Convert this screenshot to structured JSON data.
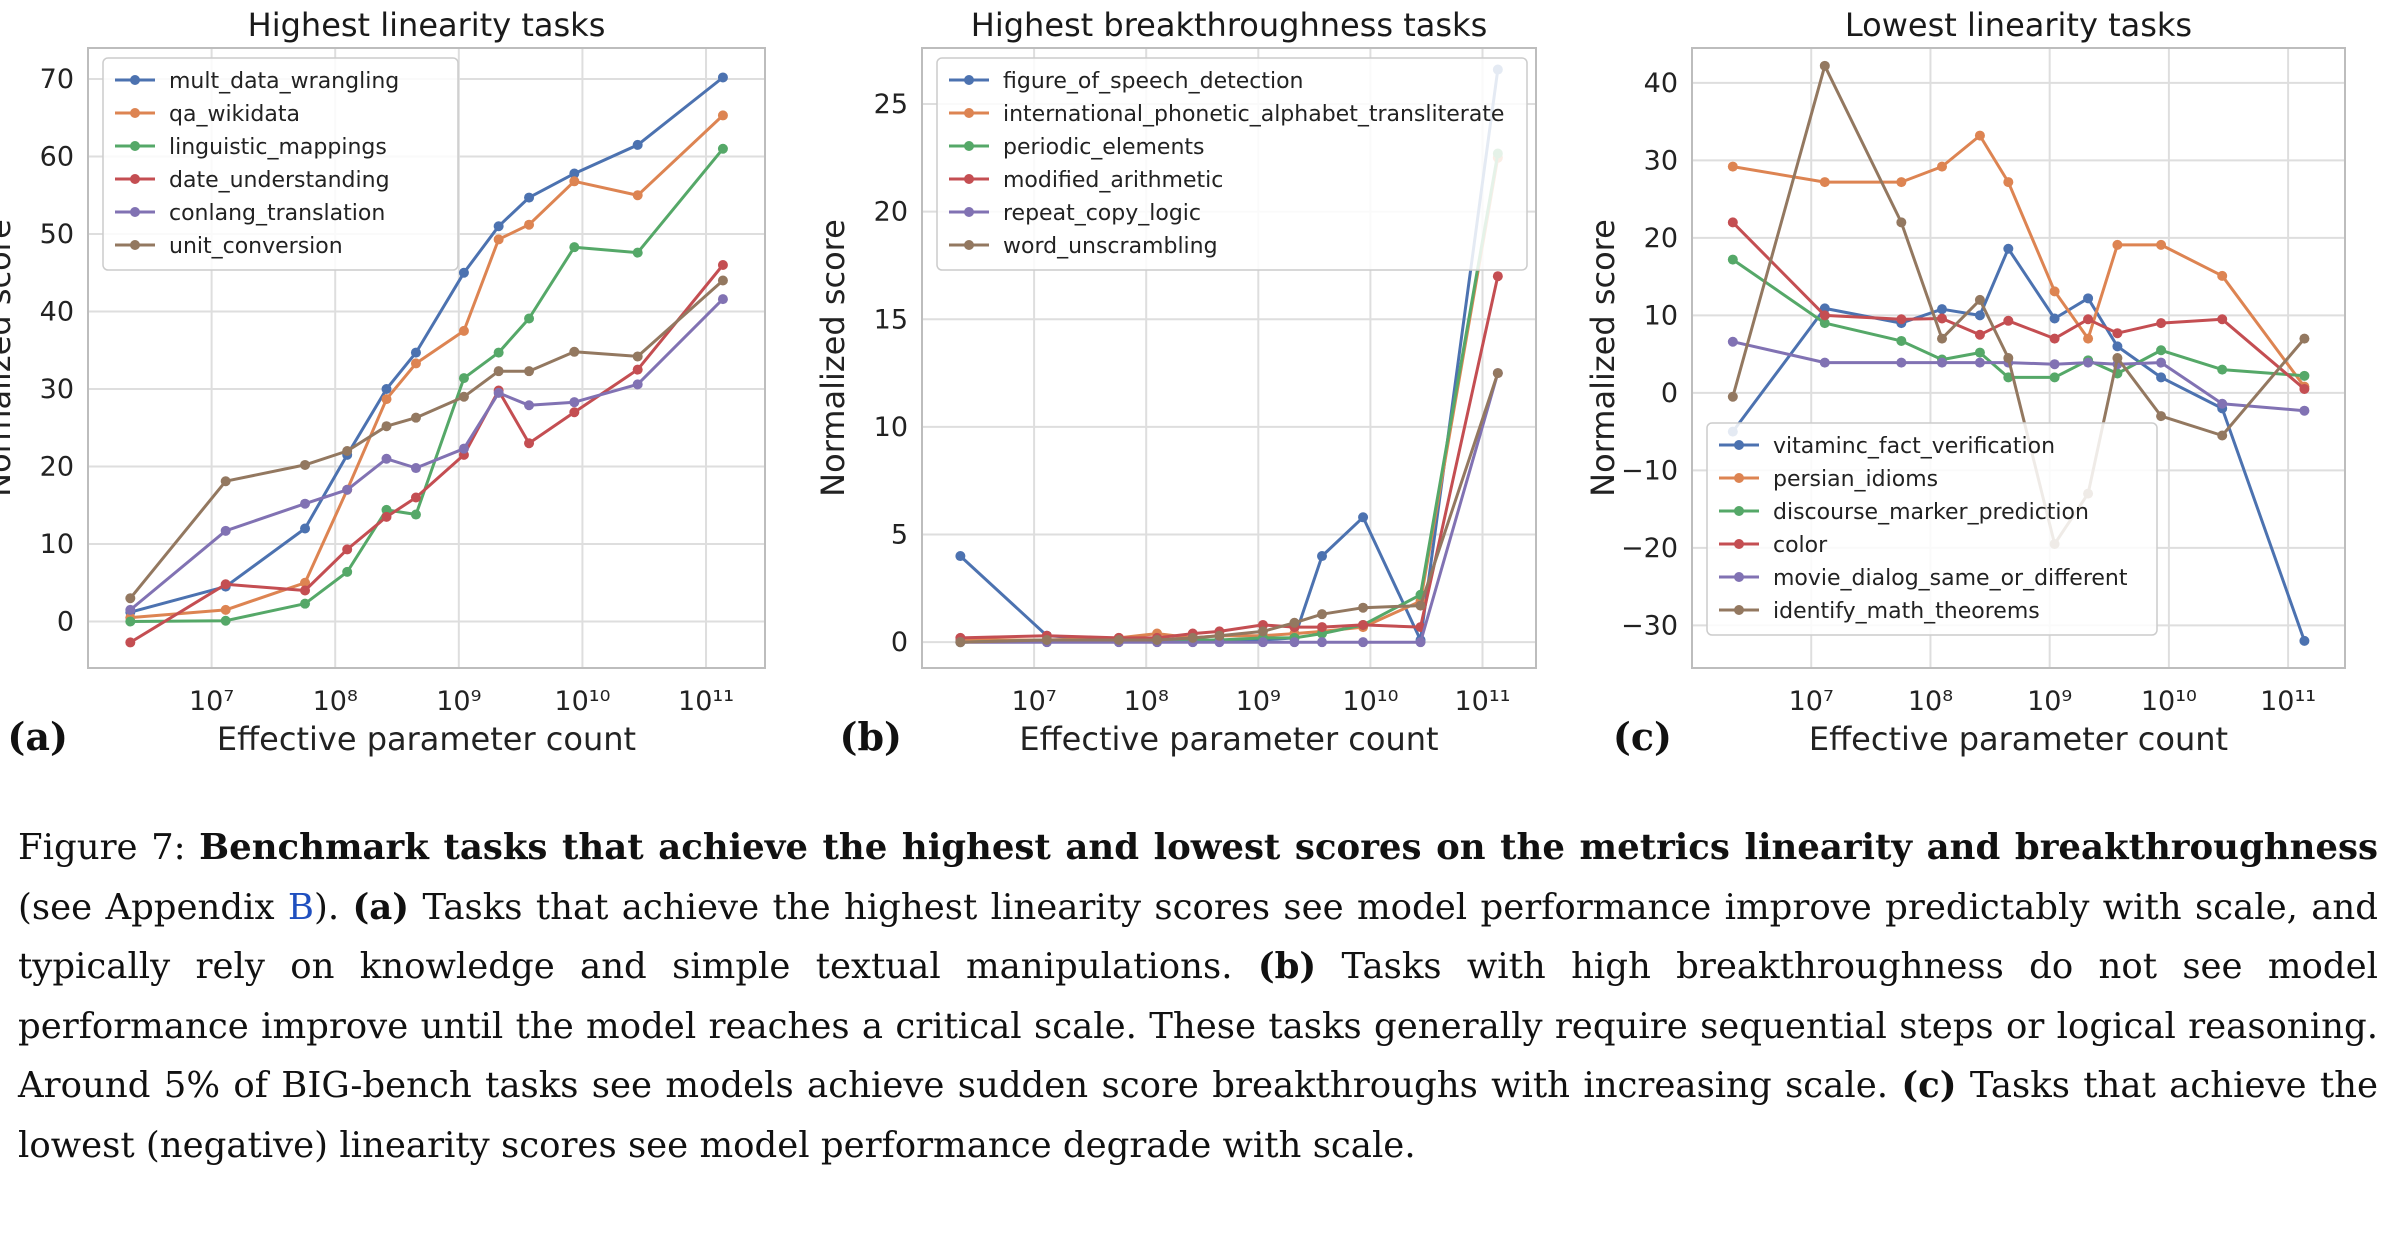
{
  "colors": {
    "blue": "#4c72b0",
    "orange": "#dd8452",
    "green": "#55a868",
    "red": "#c44e52",
    "purple": "#8172b3",
    "brown": "#937860",
    "grid": "#dedede",
    "frame": "#bdbdbd"
  },
  "x_common": [
    2200000.0,
    13000000.0,
    57000000.0,
    125000000.0,
    260000000.0,
    450000000.0,
    1100000000.0,
    2100000000.0,
    3700000000.0,
    8600000000.0,
    28000000000.0,
    137000000000.0
  ],
  "x_tick_labels": [
    "10⁷",
    "10⁸",
    "10⁹",
    "10¹⁰",
    "10¹¹"
  ],
  "chart_data": [
    {
      "type": "line",
      "title": "Highest linearity tasks",
      "tag": "(a)",
      "xlabel": "Effective parameter count",
      "ylabel": "Normalized score",
      "x_scale": "log",
      "xlim": [
        1000000.0,
        300000000000.0
      ],
      "ylim": [
        -6,
        74
      ],
      "yticks": [
        0,
        10,
        20,
        30,
        40,
        50,
        60,
        70
      ],
      "grid": true,
      "legend_position": "top-left",
      "series": [
        {
          "name": "mult_data_wrangling",
          "color": "blue",
          "x": [
            2200000.0,
            13000000.0,
            57000000.0,
            125000000.0,
            260000000.0,
            450000000.0,
            1100000000.0,
            2100000000.0,
            3700000000.0,
            8600000000.0,
            28000000000.0,
            137000000000.0
          ],
          "y": [
            1.2,
            4.5,
            12.0,
            21.5,
            30.0,
            34.7,
            45.0,
            51.0,
            54.7,
            57.8,
            61.5,
            70.2
          ]
        },
        {
          "name": "qa_wikidata",
          "color": "orange",
          "x": [
            2200000.0,
            13000000.0,
            57000000.0,
            125000000.0,
            260000000.0,
            450000000.0,
            1100000000.0,
            2100000000.0,
            3700000000.0,
            8600000000.0,
            28000000000.0,
            137000000000.0
          ],
          "y": [
            0.5,
            1.5,
            5.0,
            17.0,
            28.7,
            33.3,
            37.5,
            49.3,
            51.2,
            56.8,
            55.0,
            65.3
          ]
        },
        {
          "name": "linguistic_mappings",
          "color": "green",
          "x": [
            2200000.0,
            13000000.0,
            57000000.0,
            125000000.0,
            260000000.0,
            450000000.0,
            1100000000.0,
            2100000000.0,
            3700000000.0,
            8600000000.0,
            28000000000.0,
            137000000000.0
          ],
          "y": [
            0.0,
            0.1,
            2.3,
            6.4,
            14.4,
            13.8,
            31.4,
            34.7,
            39.1,
            48.3,
            47.6,
            61.0
          ]
        },
        {
          "name": "date_understanding",
          "color": "red",
          "x": [
            2200000.0,
            13000000.0,
            57000000.0,
            125000000.0,
            260000000.0,
            450000000.0,
            1100000000.0,
            2100000000.0,
            3700000000.0,
            8600000000.0,
            28000000000.0,
            137000000000.0
          ],
          "y": [
            -2.7,
            4.8,
            4.0,
            9.3,
            13.5,
            16.0,
            21.5,
            29.8,
            23.0,
            27.0,
            32.5,
            46.0
          ]
        },
        {
          "name": "conlang_translation",
          "color": "purple",
          "x": [
            2200000.0,
            13000000.0,
            57000000.0,
            125000000.0,
            260000000.0,
            450000000.0,
            1100000000.0,
            2100000000.0,
            3700000000.0,
            8600000000.0,
            28000000000.0,
            137000000000.0
          ],
          "y": [
            1.5,
            11.7,
            15.2,
            17.0,
            21.0,
            19.8,
            22.3,
            29.5,
            27.9,
            28.3,
            30.6,
            41.6
          ]
        },
        {
          "name": "unit_conversion",
          "color": "brown",
          "x": [
            2200000.0,
            13000000.0,
            57000000.0,
            125000000.0,
            260000000.0,
            450000000.0,
            1100000000.0,
            2100000000.0,
            3700000000.0,
            8600000000.0,
            28000000000.0,
            137000000000.0
          ],
          "y": [
            3.0,
            18.1,
            20.2,
            22.0,
            25.2,
            26.3,
            29.0,
            32.3,
            32.3,
            34.8,
            34.2,
            44.0
          ]
        }
      ]
    },
    {
      "type": "line",
      "title": "Highest breakthroughness tasks",
      "tag": "(b)",
      "xlabel": "Effective parameter count",
      "ylabel": "Normalized score",
      "x_scale": "log",
      "xlim": [
        1000000.0,
        300000000000.0
      ],
      "ylim": [
        -1.2,
        27.6
      ],
      "yticks": [
        0,
        5,
        10,
        15,
        20,
        25
      ],
      "grid": true,
      "legend_position": "top-left",
      "series": [
        {
          "name": "figure_of_speech_detection",
          "color": "blue",
          "x": [
            2200000.0,
            13000000.0,
            57000000.0,
            125000000.0,
            260000000.0,
            450000000.0,
            1100000000.0,
            2100000000.0,
            3700000000.0,
            8600000000.0,
            28000000000.0,
            137000000000.0
          ],
          "y": [
            4.0,
            0.3,
            0.1,
            0.1,
            0.1,
            0.1,
            0.1,
            0.2,
            4.0,
            5.8,
            0.1,
            26.6
          ]
        },
        {
          "name": "international_phonetic_alphabet_transliterate",
          "color": "orange",
          "x": [
            2200000.0,
            13000000.0,
            57000000.0,
            125000000.0,
            260000000.0,
            450000000.0,
            1100000000.0,
            2100000000.0,
            3700000000.0,
            8600000000.0,
            28000000000.0,
            137000000000.0
          ],
          "y": [
            0.1,
            0.1,
            0.2,
            0.4,
            0.2,
            0.3,
            0.3,
            0.4,
            0.5,
            0.7,
            1.9,
            22.5
          ]
        },
        {
          "name": "periodic_elements",
          "color": "green",
          "x": [
            2200000.0,
            13000000.0,
            57000000.0,
            125000000.0,
            260000000.0,
            450000000.0,
            1100000000.0,
            2100000000.0,
            3700000000.0,
            8600000000.0,
            28000000000.0,
            137000000000.0
          ],
          "y": [
            0.0,
            0.1,
            0.1,
            0.1,
            0.1,
            0.1,
            0.2,
            0.2,
            0.4,
            0.8,
            2.2,
            22.7
          ]
        },
        {
          "name": "modified_arithmetic",
          "color": "red",
          "x": [
            2200000.0,
            13000000.0,
            57000000.0,
            125000000.0,
            260000000.0,
            450000000.0,
            1100000000.0,
            2100000000.0,
            3700000000.0,
            8600000000.0,
            28000000000.0,
            137000000000.0
          ],
          "y": [
            0.2,
            0.3,
            0.2,
            0.2,
            0.4,
            0.5,
            0.8,
            0.7,
            0.7,
            0.8,
            0.7,
            17.0
          ]
        },
        {
          "name": "repeat_copy_logic",
          "color": "purple",
          "x": [
            2200000.0,
            13000000.0,
            57000000.0,
            125000000.0,
            260000000.0,
            450000000.0,
            1100000000.0,
            2100000000.0,
            3700000000.0,
            8600000000.0,
            28000000000.0,
            137000000000.0
          ],
          "y": [
            0.0,
            0.0,
            0.0,
            0.0,
            0.0,
            0.0,
            0.0,
            0.0,
            0.0,
            0.0,
            0.0,
            12.5
          ]
        },
        {
          "name": "word_unscrambling",
          "color": "brown",
          "x": [
            2200000.0,
            13000000.0,
            57000000.0,
            125000000.0,
            260000000.0,
            450000000.0,
            1100000000.0,
            2100000000.0,
            3700000000.0,
            8600000000.0,
            28000000000.0,
            137000000000.0
          ],
          "y": [
            0.0,
            0.1,
            0.1,
            0.1,
            0.2,
            0.3,
            0.5,
            0.9,
            1.3,
            1.6,
            1.7,
            12.5
          ]
        }
      ]
    },
    {
      "type": "line",
      "title": "Lowest linearity tasks",
      "tag": "(c)",
      "xlabel": "Effective parameter count",
      "ylabel": "Normalized score",
      "x_scale": "log",
      "xlim": [
        1000000.0,
        300000000000.0
      ],
      "ylim": [
        -35.5,
        44.5
      ],
      "yticks": [
        -30,
        -20,
        -10,
        0,
        10,
        20,
        30,
        40
      ],
      "grid": true,
      "legend_position": "bottom-left",
      "series": [
        {
          "name": "vitaminc_fact_verification",
          "color": "blue",
          "x": [
            2200000.0,
            13000000.0,
            57000000.0,
            125000000.0,
            260000000.0,
            450000000.0,
            1100000000.0,
            2100000000.0,
            3700000000.0,
            8600000000.0,
            28000000000.0,
            137000000000.0
          ],
          "y": [
            -5.0,
            10.9,
            9.0,
            10.8,
            10.0,
            18.6,
            9.6,
            12.2,
            6.0,
            2.0,
            -2.0,
            -32.0
          ]
        },
        {
          "name": "persian_idioms",
          "color": "orange",
          "x": [
            2200000.0,
            13000000.0,
            57000000.0,
            125000000.0,
            260000000.0,
            450000000.0,
            1100000000.0,
            2100000000.0,
            3700000000.0,
            8600000000.0,
            28000000000.0,
            137000000000.0
          ],
          "y": [
            29.2,
            27.2,
            27.2,
            29.2,
            33.2,
            27.2,
            13.1,
            7.0,
            19.1,
            19.1,
            15.1,
            0.8
          ]
        },
        {
          "name": "discourse_marker_prediction",
          "color": "green",
          "x": [
            2200000.0,
            13000000.0,
            57000000.0,
            125000000.0,
            260000000.0,
            450000000.0,
            1100000000.0,
            2100000000.0,
            3700000000.0,
            8600000000.0,
            28000000000.0,
            137000000000.0
          ],
          "y": [
            17.2,
            9.0,
            6.7,
            4.3,
            5.2,
            2.0,
            2.0,
            4.2,
            2.5,
            5.5,
            3.0,
            2.2
          ]
        },
        {
          "name": "color",
          "color": "red",
          "x": [
            2200000.0,
            13000000.0,
            57000000.0,
            125000000.0,
            260000000.0,
            450000000.0,
            1100000000.0,
            2100000000.0,
            3700000000.0,
            8600000000.0,
            28000000000.0,
            137000000000.0
          ],
          "y": [
            22.0,
            10.0,
            9.5,
            9.6,
            7.5,
            9.3,
            7.0,
            9.5,
            7.7,
            9.0,
            9.5,
            0.5
          ]
        },
        {
          "name": "movie_dialog_same_or_different",
          "color": "purple",
          "x": [
            2200000.0,
            13000000.0,
            57000000.0,
            125000000.0,
            260000000.0,
            450000000.0,
            1100000000.0,
            2100000000.0,
            3700000000.0,
            8600000000.0,
            28000000000.0,
            137000000000.0
          ],
          "y": [
            6.6,
            3.9,
            3.9,
            3.9,
            3.9,
            3.9,
            3.7,
            3.9,
            3.7,
            3.9,
            -1.4,
            -2.3
          ]
        },
        {
          "name": "identify_math_theorems",
          "color": "brown",
          "x": [
            2200000.0,
            13000000.0,
            57000000.0,
            125000000.0,
            260000000.0,
            450000000.0,
            1100000000.0,
            2100000000.0,
            3700000000.0,
            8600000000.0,
            28000000000.0,
            137000000000.0
          ],
          "y": [
            -0.5,
            42.2,
            22.0,
            7.0,
            12.0,
            4.5,
            -19.5,
            -13.0,
            4.5,
            -3.0,
            -5.5,
            7.0
          ]
        }
      ]
    }
  ],
  "caption": {
    "fig_label": "Figure 7:",
    "bold_title": "Benchmark tasks that achieve the highest and lowest scores on the metrics linearity and breakthroughness",
    "see_open": " (see Appendix ",
    "appendix_link": "B",
    "see_close": "). ",
    "a_tag": "(a)",
    "a_text": " Tasks that achieve the highest linearity scores see model performance improve predictably with scale, and typically rely on knowledge and simple textual manipulations. ",
    "b_tag": "(b)",
    "b_text": " Tasks with high breakthroughness do not see model performance improve until the model reaches a critical scale. These tasks generally require sequential steps or logical reasoning. Around 5% of BIG-bench tasks see models achieve sudden score breakthroughs with increasing scale. ",
    "c_tag": "(c)",
    "c_text": " Tasks that achieve the lowest (negative) linearity scores see model performance degrade with scale."
  }
}
